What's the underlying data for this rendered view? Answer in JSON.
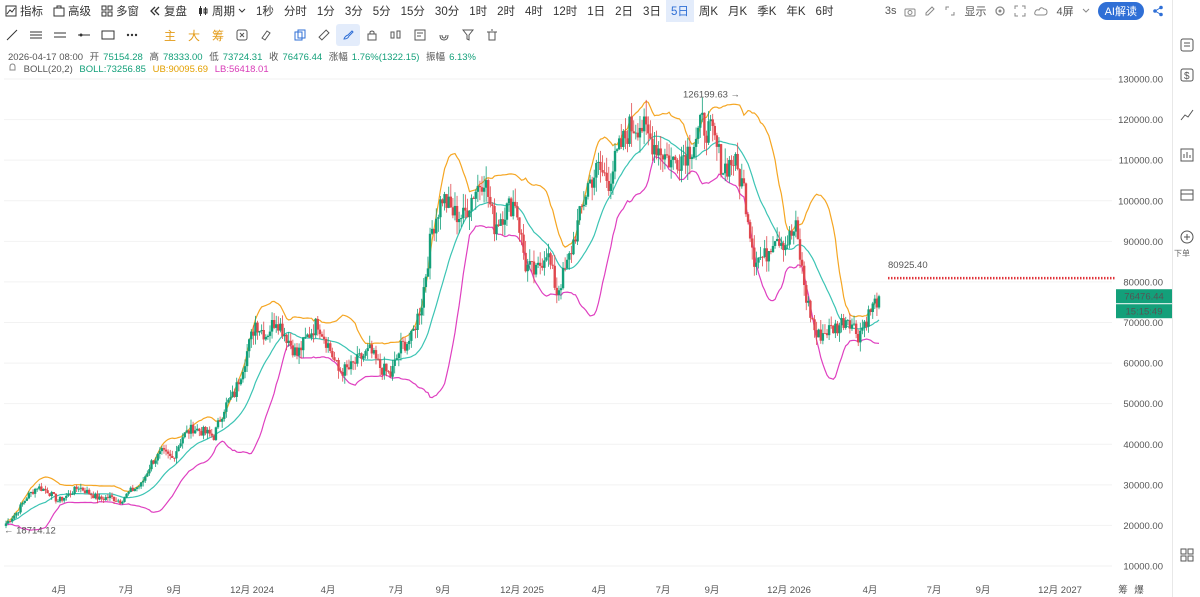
{
  "toolbar": {
    "indicators_label": "指标",
    "advanced_label": "高级",
    "multi_window_label": "多窗",
    "replay_label": "复盘",
    "period_label": "周期",
    "periods": [
      "1秒",
      "分时",
      "1分",
      "3分",
      "5分",
      "15分",
      "30分",
      "1时",
      "2时",
      "4时",
      "12时",
      "1日",
      "2日",
      "3日",
      "5日",
      "周K",
      "月K",
      "季K",
      "年K",
      "6时"
    ],
    "active_period": "5日",
    "refresh": "3s",
    "display_label": "显示",
    "screens_label": "4屏",
    "ai_label": "AI解读"
  },
  "drawing_tools": {
    "main_label": "主",
    "big_label": "大",
    "chip_label": "筹"
  },
  "ohlc": {
    "datetime": "2026-04-17 08:00",
    "open_label": "开",
    "open": "75154.28",
    "high_label": "高",
    "high": "78333.00",
    "low_label": "低",
    "low": "73724.31",
    "close_label": "收",
    "close": "76476.44",
    "change_label": "涨幅",
    "change": "1.76%(1322.15)",
    "amplitude_label": "振幅",
    "amplitude": "6.13%"
  },
  "boll": {
    "name": "BOLL(20,2)",
    "mid": "BOLL:73256.85",
    "ub": "UB:90095.69",
    "lb": "LB:56418.01"
  },
  "sidebar": {
    "label": "下单"
  },
  "colors": {
    "up": "#13a07a",
    "down": "#e0484e",
    "mid": "#3cc4b4",
    "upper": "#f5a623",
    "lower": "#df40c0",
    "accent": "#2f6fd6",
    "alert": "#e0333a"
  },
  "chart_data": {
    "type": "candlestick",
    "ylim": [
      10000,
      135000
    ],
    "yticks": [
      "130000.00",
      "120000.00",
      "110000.00",
      "100000.00",
      "90000.00",
      "80000.00",
      "70000.00",
      "60000.00",
      "50000.00",
      "40000.00",
      "30000.00",
      "20000.00",
      "10000.00"
    ],
    "xticks": [
      "4月",
      "7月",
      "9月",
      "12月 2024",
      "4月",
      "7月",
      "9月",
      "12月 2025",
      "4月",
      "7月",
      "9月",
      "12月 2026",
      "4月",
      "7月",
      "9月",
      "12月 2027"
    ],
    "x_right_labels": [
      "筹",
      "爆"
    ],
    "annotations": {
      "max": "126199.63",
      "min": "18714.12",
      "alert_price": "80925.40",
      "last_price": "76476.44",
      "countdown": "15:15:49"
    },
    "series_close": [
      20500,
      23000,
      27000,
      29500,
      28500,
      26000,
      27500,
      29500,
      28000,
      26500,
      27000,
      26000,
      28500,
      30000,
      35500,
      38000,
      36500,
      42000,
      44000,
      43000,
      42000,
      49000,
      52500,
      61000,
      70000,
      67000,
      71000,
      66500,
      62000,
      66500,
      70000,
      64500,
      58000,
      58500,
      61000,
      63000,
      59000,
      57000,
      64000,
      66000,
      75000,
      93000,
      101000,
      97000,
      96000,
      102000,
      106000,
      94000,
      97500,
      100000,
      84000,
      82000,
      88000,
      77500,
      84000,
      94000,
      104000,
      108000,
      105000,
      112500,
      118000,
      119000,
      115000,
      112500,
      109500,
      111000,
      113500,
      119000,
      116000,
      108000,
      110000,
      103000,
      86000,
      86000,
      92000,
      89500,
      93000,
      76000,
      66500,
      68000,
      69000,
      71500,
      67000,
      72000,
      76476
    ]
  }
}
